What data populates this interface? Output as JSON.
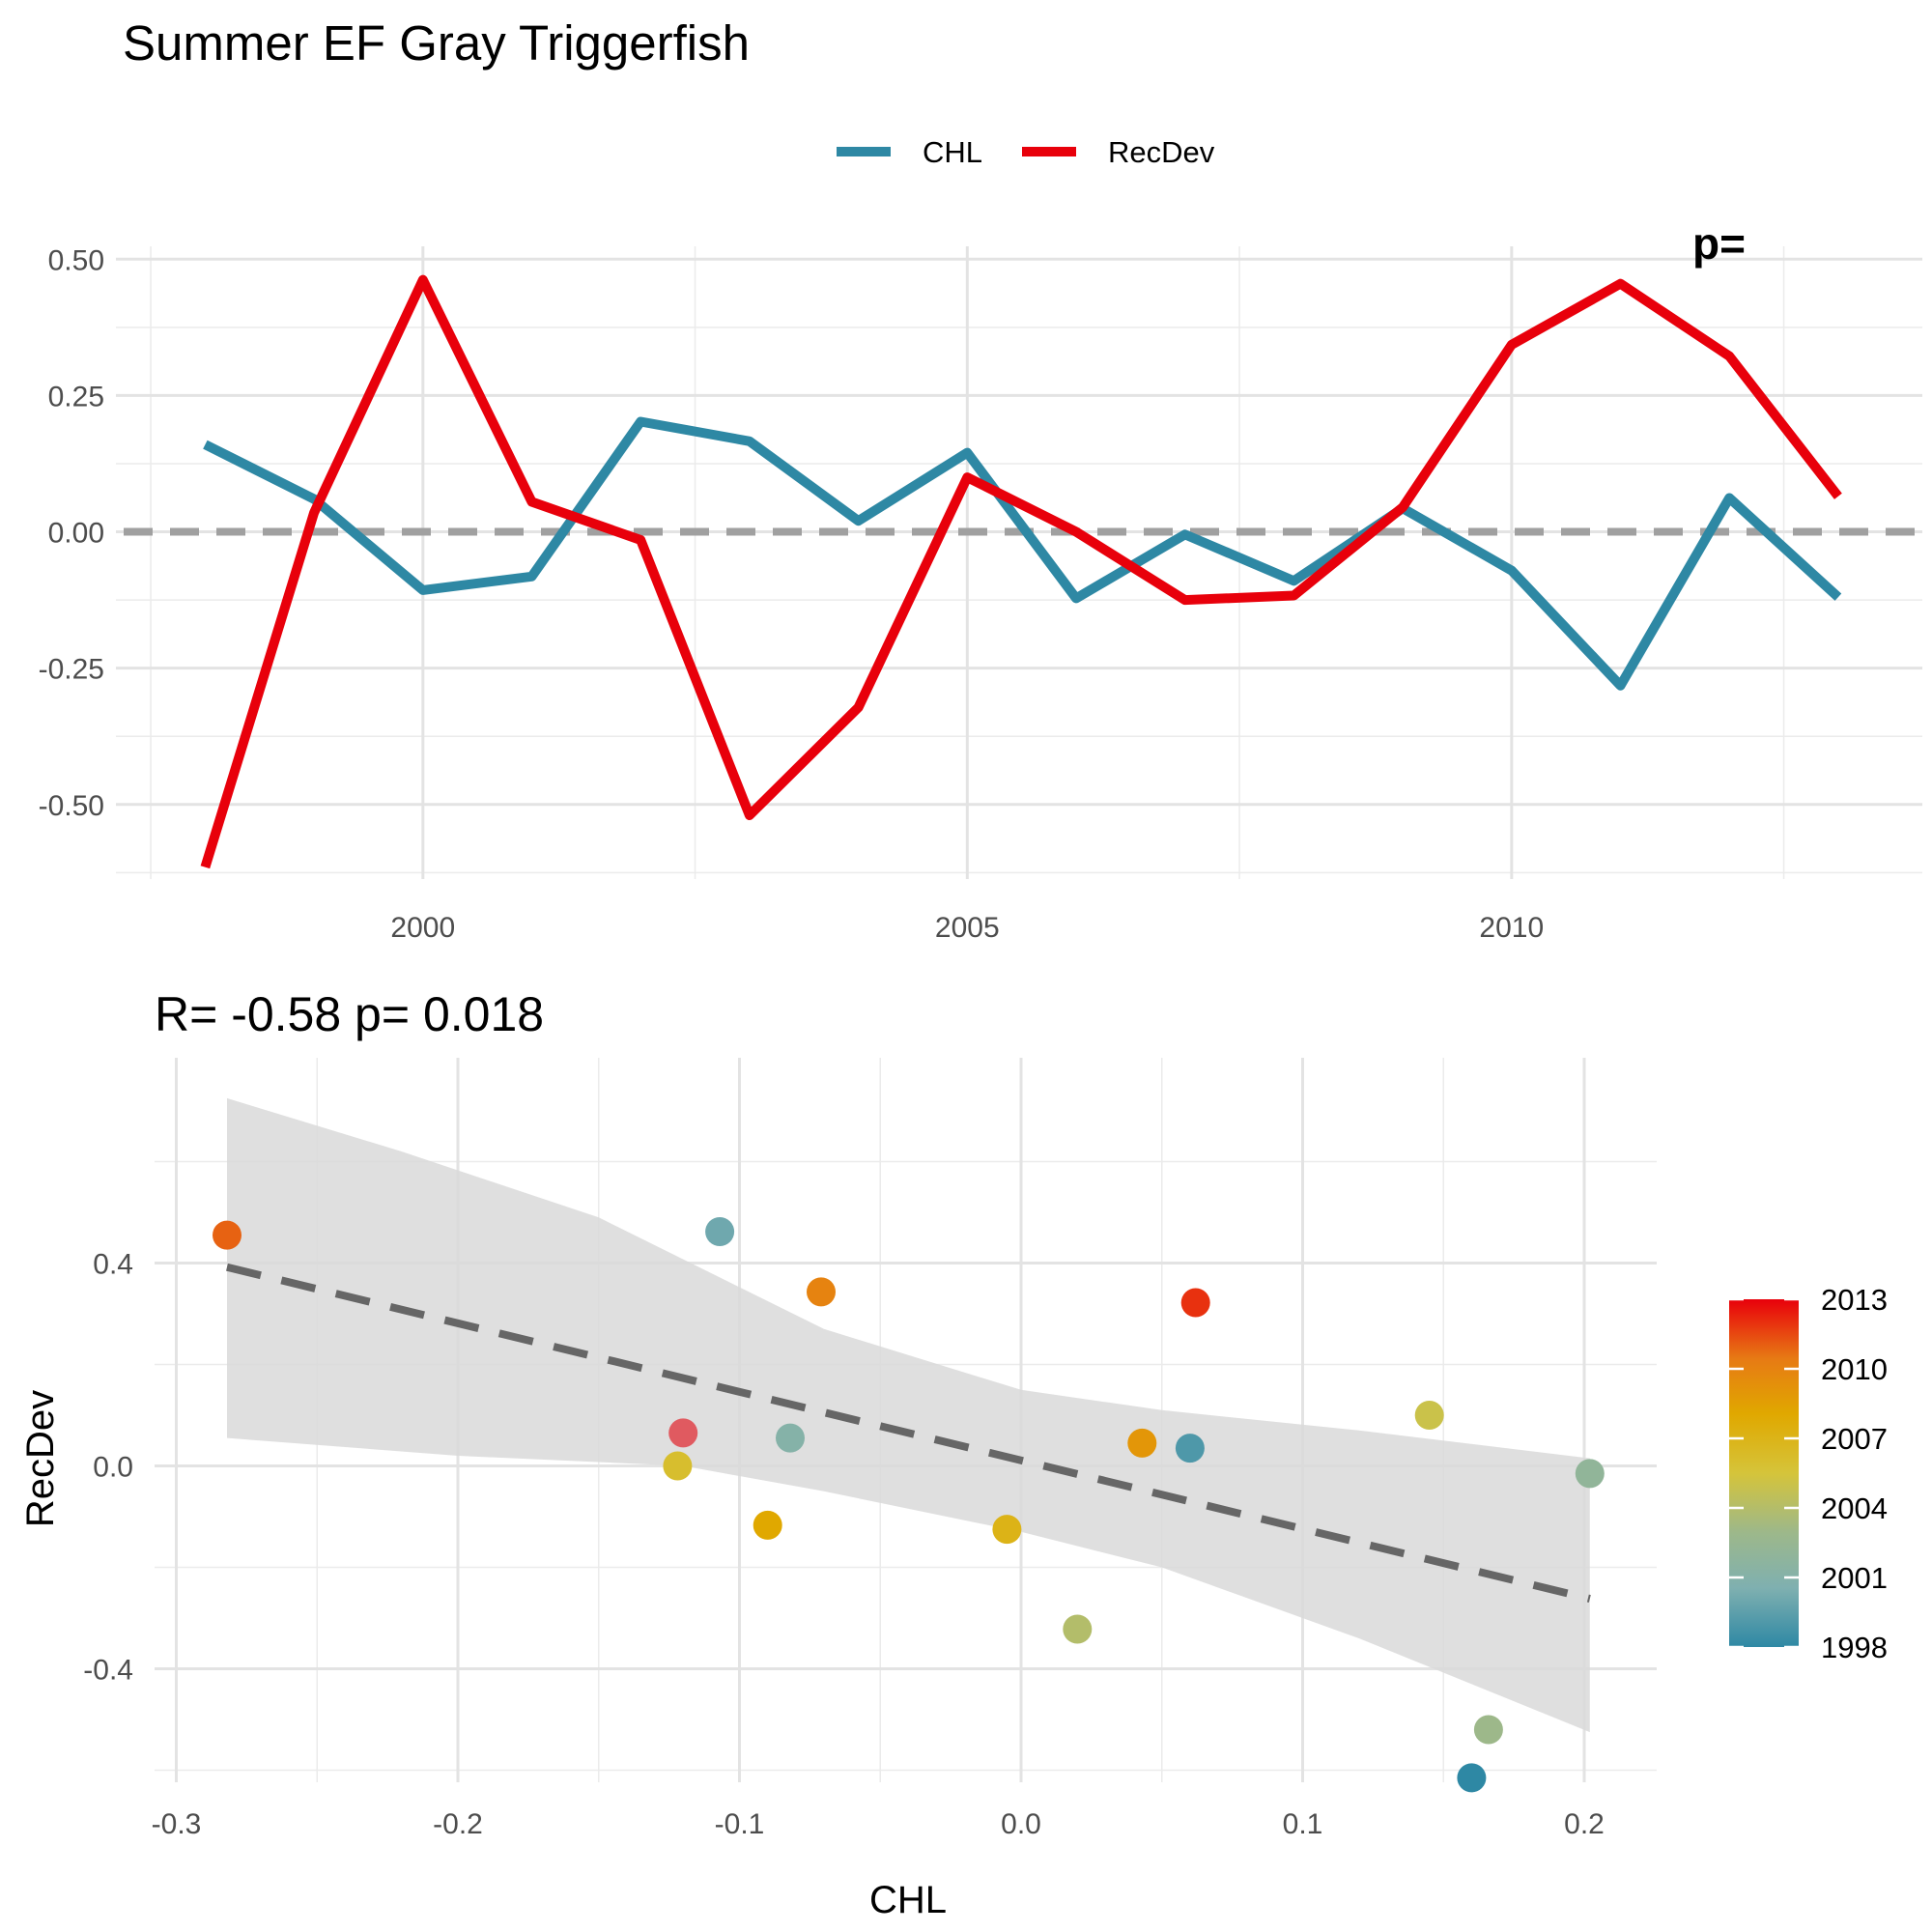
{
  "page": {
    "title": "Summer EF Gray Triggerfish"
  },
  "chart_data": [
    {
      "type": "line",
      "title": "Summer EF Gray Triggerfish",
      "xlabel": "",
      "ylabel": "",
      "xlim": [
        1997.5,
        2013.75
      ],
      "ylim": [
        -0.63,
        0.53
      ],
      "x_ticks": [
        2000,
        2005,
        2010
      ],
      "y_ticks": [
        0.5,
        0.25,
        0.0,
        -0.25,
        -0.5
      ],
      "y_tick_labels": [
        "0.50",
        "0.25",
        "0.00",
        "-0.25",
        "-0.50"
      ],
      "legend": {
        "position": "top"
      },
      "grid": true,
      "reference_line": {
        "y": 0,
        "style": "dashed",
        "color": "#a0a0a0"
      },
      "corner_annotation": "p= ",
      "x": [
        1998,
        1999,
        2000,
        2001,
        2002,
        2003,
        2004,
        2005,
        2006,
        2007,
        2008,
        2009,
        2010,
        2011,
        2012,
        2013
      ],
      "series": [
        {
          "name": "CHL",
          "color": "#2e88a4",
          "values": [
            0.16,
            0.06,
            -0.107,
            -0.082,
            0.202,
            0.166,
            0.02,
            0.145,
            -0.122,
            -0.005,
            -0.09,
            0.043,
            -0.071,
            -0.282,
            0.062,
            -0.12
          ]
        },
        {
          "name": "RecDev",
          "color": "#e8000b",
          "values": [
            -0.615,
            0.035,
            0.462,
            0.055,
            -0.015,
            -0.52,
            -0.322,
            0.1,
            0.0,
            -0.125,
            -0.117,
            0.045,
            0.343,
            0.455,
            0.322,
            0.065
          ]
        }
      ]
    },
    {
      "type": "scatter",
      "title": "R= -0.58  p= 0.018",
      "xlabel": "CHL",
      "ylabel": "RecDev",
      "xlim": [
        -0.31,
        0.23
      ],
      "ylim": [
        -0.67,
        0.8
      ],
      "x_ticks": [
        -0.3,
        -0.2,
        -0.1,
        0.0,
        0.1,
        0.2
      ],
      "x_tick_labels": [
        "-0.3",
        "-0.2",
        "-0.1",
        "0.0",
        "0.1",
        "0.2"
      ],
      "y_ticks": [
        0.4,
        0.0,
        -0.4
      ],
      "y_tick_labels": [
        "0.4",
        "0.0",
        "-0.4"
      ],
      "grid": true,
      "fit": {
        "style": "dashed",
        "color": "#666666",
        "line": [
          [
            -0.282,
            0.392
          ],
          [
            0.202,
            -0.262
          ]
        ],
        "band_upper": [
          [
            -0.282,
            0.725
          ],
          [
            -0.22,
            0.62
          ],
          [
            -0.15,
            0.49
          ],
          [
            -0.07,
            0.27
          ],
          [
            0.0,
            0.15
          ],
          [
            0.05,
            0.11
          ],
          [
            0.12,
            0.07
          ],
          [
            0.202,
            0.015
          ]
        ],
        "band_lower": [
          [
            -0.282,
            0.055
          ],
          [
            -0.2,
            0.02
          ],
          [
            -0.12,
            0.0
          ],
          [
            -0.07,
            -0.05
          ],
          [
            0.0,
            -0.13
          ],
          [
            0.05,
            -0.2
          ],
          [
            0.12,
            -0.34
          ],
          [
            0.202,
            -0.525
          ]
        ],
        "band_color": "#d9d9d9"
      },
      "color_scale": {
        "label": "",
        "min": 1998,
        "max": 2013,
        "ticks": [
          2013,
          2010,
          2007,
          2004,
          2001,
          1998
        ],
        "tick_labels": [
          "2013",
          "2010",
          "2007",
          "2004",
          "2001",
          "1998"
        ],
        "stops": [
          "#2e88a4",
          "#7fb0b0",
          "#9db88a",
          "#d5c43a",
          "#e0a800",
          "#e77a14",
          "#e8000b"
        ]
      },
      "points": [
        {
          "year": 1998,
          "x": 0.16,
          "y": -0.615
        },
        {
          "year": 1999,
          "x": 0.06,
          "y": 0.035
        },
        {
          "year": 2000,
          "x": -0.107,
          "y": 0.462
        },
        {
          "year": 2001,
          "x": -0.082,
          "y": 0.055
        },
        {
          "year": 2002,
          "x": 0.202,
          "y": -0.015
        },
        {
          "year": 2003,
          "x": 0.166,
          "y": -0.52
        },
        {
          "year": 2004,
          "x": 0.02,
          "y": -0.322
        },
        {
          "year": 2005,
          "x": 0.145,
          "y": 0.1
        },
        {
          "year": 2006,
          "x": -0.122,
          "y": 0.0
        },
        {
          "year": 2007,
          "x": -0.005,
          "y": -0.125
        },
        {
          "year": 2008,
          "x": -0.09,
          "y": -0.117
        },
        {
          "year": 2009,
          "x": 0.043,
          "y": 0.045
        },
        {
          "year": 2010,
          "x": -0.071,
          "y": 0.343
        },
        {
          "year": 2011,
          "x": -0.282,
          "y": 0.455
        },
        {
          "year": 2012,
          "x": 0.062,
          "y": 0.322
        },
        {
          "year": 2013,
          "x": -0.12,
          "y": 0.065,
          "color_override": "#e05a60"
        }
      ]
    }
  ]
}
